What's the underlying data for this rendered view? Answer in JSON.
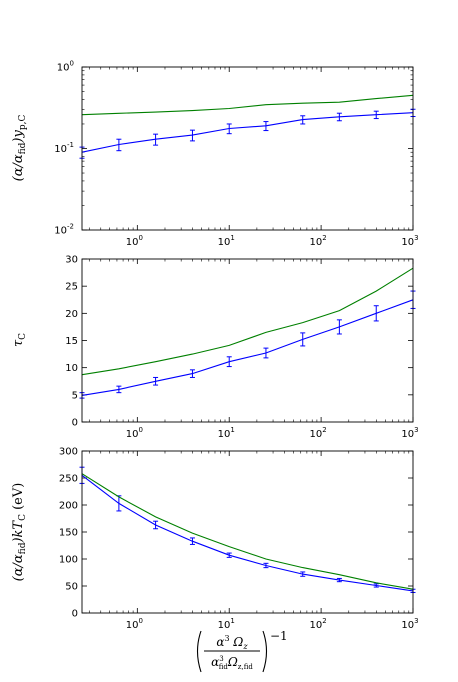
{
  "chart_data": [
    {
      "type": "line",
      "scale": {
        "x": "log",
        "y": "log"
      },
      "xlim": [
        0.25,
        1000
      ],
      "ylim": [
        0.01,
        1
      ],
      "ylabel": "(α/α_fid) y_p,C",
      "x_ticks": [
        {
          "value": 1,
          "base": "10",
          "exp": "0"
        },
        {
          "value": 10,
          "base": "10",
          "exp": "1"
        },
        {
          "value": 100,
          "base": "10",
          "exp": "2"
        },
        {
          "value": 1000,
          "base": "10",
          "exp": "3"
        }
      ],
      "y_ticks": [
        {
          "value": 0.01,
          "base": "10",
          "exp": "-2"
        },
        {
          "value": 0.1,
          "base": "10",
          "exp": "-1"
        },
        {
          "value": 1,
          "base": "10",
          "exp": "0"
        }
      ],
      "series": [
        {
          "color": "#0000ff",
          "errorbars": true,
          "x": [
            0.25,
            0.63,
            1.58,
            3.98,
            10,
            25.1,
            63.1,
            158,
            398,
            1000
          ],
          "y": [
            0.09,
            0.112,
            0.13,
            0.146,
            0.176,
            0.19,
            0.226,
            0.245,
            0.26,
            0.275
          ],
          "err": [
            0.014,
            0.018,
            0.02,
            0.022,
            0.024,
            0.024,
            0.026,
            0.026,
            0.027,
            0.028
          ]
        },
        {
          "color": "#008000",
          "errorbars": false,
          "x": [
            0.25,
            0.63,
            1.58,
            3.98,
            10,
            25.1,
            63.1,
            158,
            398,
            1000
          ],
          "y": [
            0.26,
            0.27,
            0.28,
            0.292,
            0.31,
            0.345,
            0.36,
            0.37,
            0.41,
            0.45
          ]
        }
      ]
    },
    {
      "type": "line",
      "scale": {
        "x": "log",
        "y": "linear"
      },
      "xlim": [
        0.25,
        1000
      ],
      "ylim": [
        0,
        30
      ],
      "ylabel": "τ_C",
      "x_ticks": [
        {
          "value": 1,
          "base": "10",
          "exp": "0"
        },
        {
          "value": 10,
          "base": "10",
          "exp": "1"
        },
        {
          "value": 100,
          "base": "10",
          "exp": "2"
        },
        {
          "value": 1000,
          "base": "10",
          "exp": "3"
        }
      ],
      "y_ticks": [
        {
          "value": 0,
          "label": "0"
        },
        {
          "value": 5,
          "label": "5"
        },
        {
          "value": 10,
          "label": "10"
        },
        {
          "value": 15,
          "label": "15"
        },
        {
          "value": 20,
          "label": "20"
        },
        {
          "value": 25,
          "label": "25"
        },
        {
          "value": 30,
          "label": "30"
        }
      ],
      "series": [
        {
          "color": "#0000ff",
          "errorbars": true,
          "x": [
            0.25,
            0.63,
            1.58,
            3.98,
            10,
            25.1,
            63.1,
            158,
            398,
            1000
          ],
          "y": [
            4.9,
            6.0,
            7.5,
            8.9,
            11.1,
            12.7,
            15.2,
            17.5,
            20.0,
            22.5
          ],
          "err": [
            0.5,
            0.6,
            0.7,
            0.7,
            0.9,
            0.9,
            1.2,
            1.3,
            1.4,
            1.6
          ]
        },
        {
          "color": "#008000",
          "errorbars": false,
          "x": [
            0.25,
            0.63,
            1.58,
            3.98,
            10,
            25.1,
            63.1,
            158,
            398,
            1000
          ],
          "y": [
            8.7,
            9.8,
            11.1,
            12.5,
            14.1,
            16.5,
            18.3,
            20.5,
            24.1,
            28.3
          ]
        }
      ]
    },
    {
      "type": "line",
      "scale": {
        "x": "log",
        "y": "linear"
      },
      "xlim": [
        0.25,
        1000
      ],
      "ylim": [
        0,
        300
      ],
      "ylabel": "(α/α_fid) kT_C (eV)",
      "xlabel": "(α³ Ω_z / α³_fid Ω_z,fid)^−1",
      "x_ticks": [
        {
          "value": 1,
          "base": "10",
          "exp": "0"
        },
        {
          "value": 10,
          "base": "10",
          "exp": "1"
        },
        {
          "value": 100,
          "base": "10",
          "exp": "2"
        },
        {
          "value": 1000,
          "base": "10",
          "exp": "3"
        }
      ],
      "y_ticks": [
        {
          "value": 0,
          "label": "0"
        },
        {
          "value": 50,
          "label": "50"
        },
        {
          "value": 100,
          "label": "100"
        },
        {
          "value": 150,
          "label": "150"
        },
        {
          "value": 200,
          "label": "200"
        },
        {
          "value": 250,
          "label": "250"
        },
        {
          "value": 300,
          "label": "300"
        }
      ],
      "series": [
        {
          "color": "#0000ff",
          "errorbars": true,
          "x": [
            0.25,
            0.63,
            1.58,
            3.98,
            10,
            25.1,
            63.1,
            158,
            398,
            1000
          ],
          "y": [
            255,
            203,
            163,
            133,
            107,
            88,
            72,
            61,
            51,
            41
          ],
          "err": [
            15,
            14,
            7,
            6,
            4,
            4,
            4,
            3,
            3,
            3
          ]
        },
        {
          "color": "#008000",
          "errorbars": false,
          "x": [
            0.25,
            0.63,
            1.58,
            3.98,
            10,
            25.1,
            63.1,
            158,
            398,
            1000
          ],
          "y": [
            258,
            215,
            178,
            148,
            123,
            100,
            84,
            71,
            56,
            44
          ]
        }
      ]
    }
  ]
}
